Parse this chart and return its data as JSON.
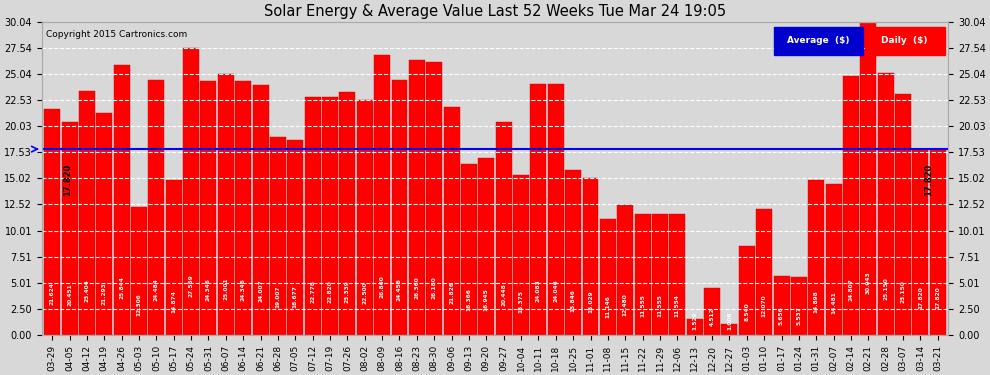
{
  "title": "Solar Energy & Average Value Last 52 Weeks Tue Mar 24 19:05",
  "copyright": "Copyright 2015 Cartronics.com",
  "average_label": "17.820",
  "average_value": 17.82,
  "bar_color": "#ff0000",
  "average_line_color": "#0000ff",
  "background_color": "#d8d8d8",
  "grid_color": "#ffffff",
  "ylim": [
    0,
    30.04
  ],
  "yticks": [
    0.0,
    2.5,
    5.01,
    7.51,
    10.01,
    12.52,
    15.02,
    17.53,
    20.03,
    22.53,
    25.04,
    27.54,
    30.04
  ],
  "categories": [
    "03-29",
    "04-05",
    "04-12",
    "04-19",
    "04-26",
    "05-03",
    "05-10",
    "05-17",
    "05-24",
    "05-31",
    "06-07",
    "06-14",
    "06-21",
    "06-28",
    "07-05",
    "07-12",
    "07-19",
    "07-26",
    "08-02",
    "08-09",
    "08-16",
    "08-23",
    "08-30",
    "09-06",
    "09-13",
    "09-20",
    "09-27",
    "10-04",
    "10-11",
    "10-18",
    "10-25",
    "11-01",
    "11-08",
    "11-15",
    "11-22",
    "11-29",
    "12-06",
    "12-13",
    "12-20",
    "12-27",
    "01-03",
    "01-10",
    "01-17",
    "01-24",
    "01-31",
    "02-07",
    "02-14",
    "02-21",
    "02-28",
    "03-07",
    "03-14",
    "03-21"
  ],
  "values": [
    21.624,
    20.451,
    23.404,
    21.293,
    25.844,
    12.306,
    24.484,
    14.874,
    27.559,
    24.346,
    25.001,
    24.346,
    24.007,
    19.007,
    18.677,
    22.778,
    22.82,
    23.339,
    22.5,
    26.86,
    24.456,
    26.36,
    26.18,
    21.826,
    16.366,
    16.945,
    20.448,
    15.375,
    24.083,
    24.046,
    15.846,
    15.029,
    11.146,
    12.48,
    11.555,
    11.555,
    11.554,
    1.529,
    4.512,
    1.006,
    8.54,
    12.07,
    5.656,
    5.537,
    14.898,
    14.481,
    24.807,
    30.043,
    25.15,
    23.15,
    17.82,
    17.82
  ],
  "legend_blue_label": "Average  ($)",
  "legend_red_label": "Daily  ($)"
}
